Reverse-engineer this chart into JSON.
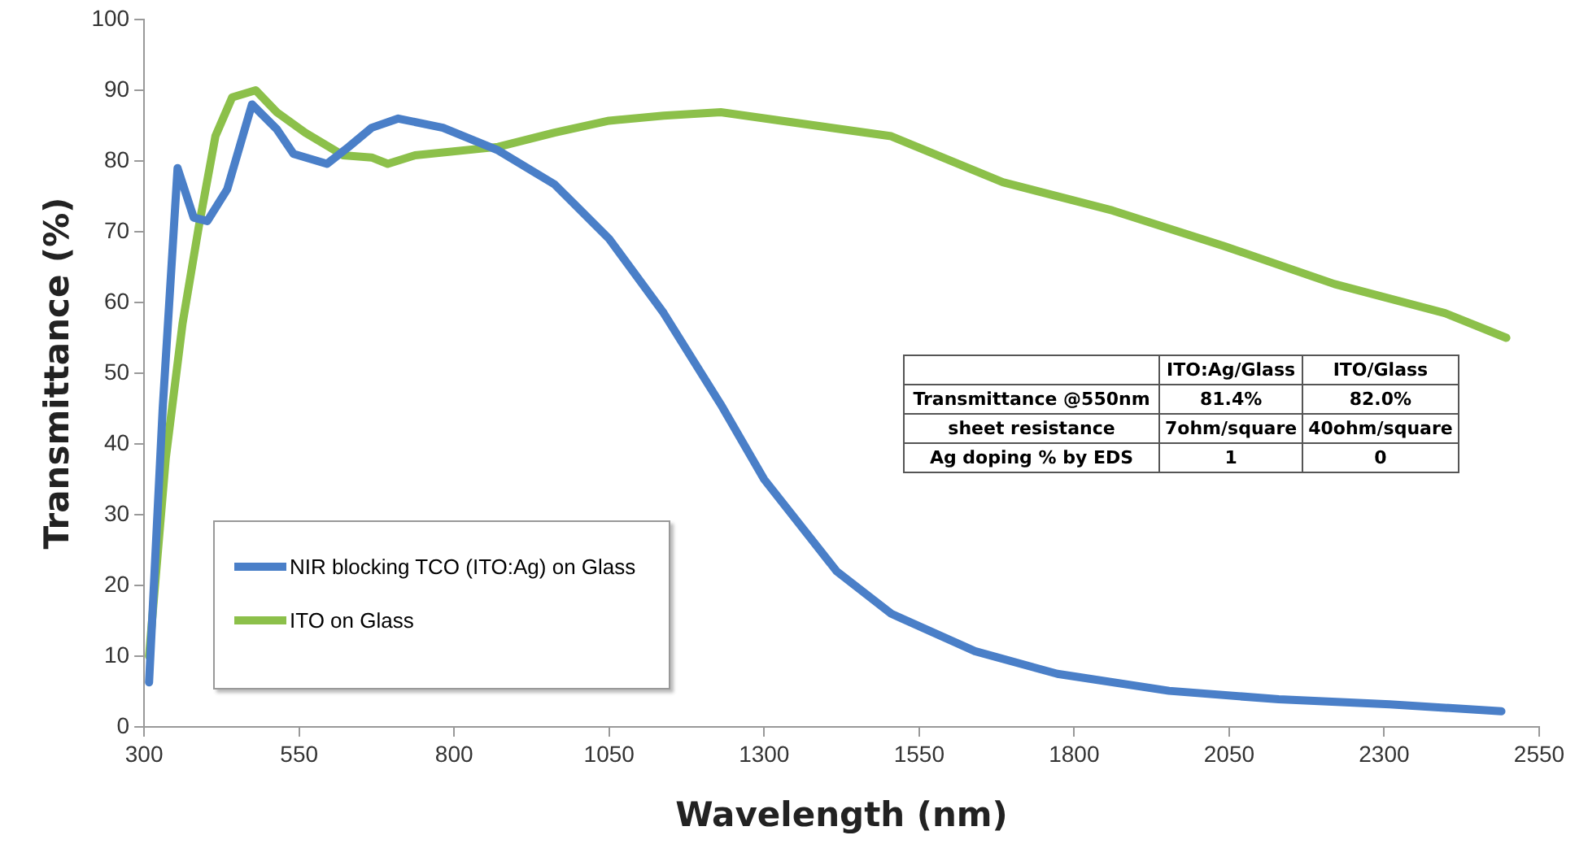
{
  "chart_data": {
    "type": "line",
    "xlabel": "Wavelength (nm)",
    "ylabel": "Transmittance (%)",
    "xlim": [
      300,
      2550
    ],
    "xticks": [
      300,
      550,
      800,
      1050,
      1300,
      1550,
      1800,
      2050,
      2300,
      2550
    ],
    "ylim": [
      0,
      100
    ],
    "yticks": [
      0,
      10,
      20,
      30,
      40,
      50,
      60,
      70,
      80,
      90,
      100
    ],
    "grid": false,
    "legend": "bottom left",
    "marker": "none",
    "line_style": "solid",
    "series": [
      {
        "name": "NIR blocking TCO (ITO:Ag) on Glass",
        "color": "#4a7fc8",
        "x": [
          308,
          330,
          354,
          380,
          402,
          434,
          474,
          514,
          541,
          595,
          630,
          667,
          710,
          782,
          871,
          962,
          1050,
          1138,
          1230,
          1300,
          1417,
          1505,
          1640,
          1773,
          1953,
          2130,
          2309,
          2489
        ],
        "values": [
          6.3,
          45,
          79,
          72,
          71.5,
          76,
          88,
          84.5,
          81,
          79.6,
          82,
          84.7,
          86,
          84.7,
          81.5,
          76.7,
          69,
          58.5,
          45.6,
          35,
          22,
          16,
          10.7,
          7.5,
          5.1,
          3.9,
          3.2,
          2.2
        ]
      },
      {
        "name": "ITO on Glass",
        "color": "#8cc04a",
        "x": [
          308,
          335,
          362,
          388,
          415,
          442,
          480,
          514,
          560,
          621,
          667,
          693,
          737,
          871,
          962,
          1050,
          1138,
          1230,
          1505,
          1685,
          1862,
          2041,
          2220,
          2398,
          2497
        ],
        "values": [
          10,
          38,
          57,
          70.6,
          83.5,
          89,
          90,
          86.9,
          84,
          80.8,
          80.5,
          79.6,
          80.8,
          82,
          84,
          85.7,
          86.4,
          86.9,
          83.5,
          77,
          73,
          68,
          62.6,
          58.5,
          55
        ]
      }
    ],
    "annotations": [
      "ITO:Ag/Glass",
      "ITO/Glass",
      "Transmittance @550nm",
      "81.4%",
      "82.0%",
      "sheet resistance",
      "7ohm/square",
      "40ohm/square",
      "Ag doping % by EDS",
      "1",
      "0"
    ]
  }
}
